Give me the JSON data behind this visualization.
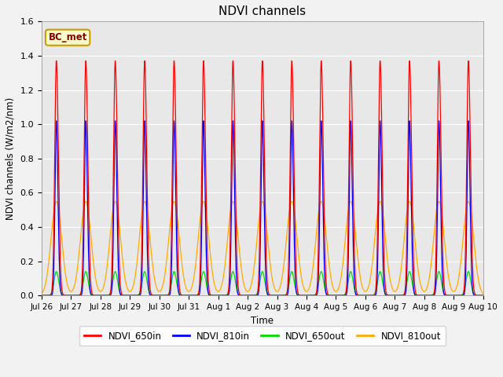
{
  "title": "NDVI channels",
  "ylabel": "NDVI channels (W/m2/nm)",
  "xlabel": "Time",
  "annotation": "BC_met",
  "ylim": [
    0,
    1.6
  ],
  "x_tick_labels": [
    "Jul 26",
    "Jul 27",
    "Jul 28",
    "Jul 29",
    "Jul 30",
    "Jul 31",
    "Aug 1",
    "Aug 2",
    "Aug 3",
    "Aug 4",
    "Aug 5",
    "Aug 6",
    "Aug 7",
    "Aug 8",
    "Aug 9",
    "Aug 10"
  ],
  "legend_labels": [
    "NDVI_650in",
    "NDVI_810in",
    "NDVI_650out",
    "NDVI_810out"
  ],
  "colors": {
    "NDVI_650in": "#ff0000",
    "NDVI_810in": "#0000ff",
    "NDVI_650out": "#00dd00",
    "NDVI_810out": "#ffaa00"
  },
  "num_days": 15,
  "peak_650in": 1.37,
  "peak_810in": 1.02,
  "peak_650out": 0.14,
  "peak_810out": 0.55,
  "background_color": "#e8e8e8",
  "grid_color": "#ffffff",
  "annotation_bg": "#ffffcc",
  "annotation_border": "#cc9900",
  "fig_bg": "#f2f2f2"
}
